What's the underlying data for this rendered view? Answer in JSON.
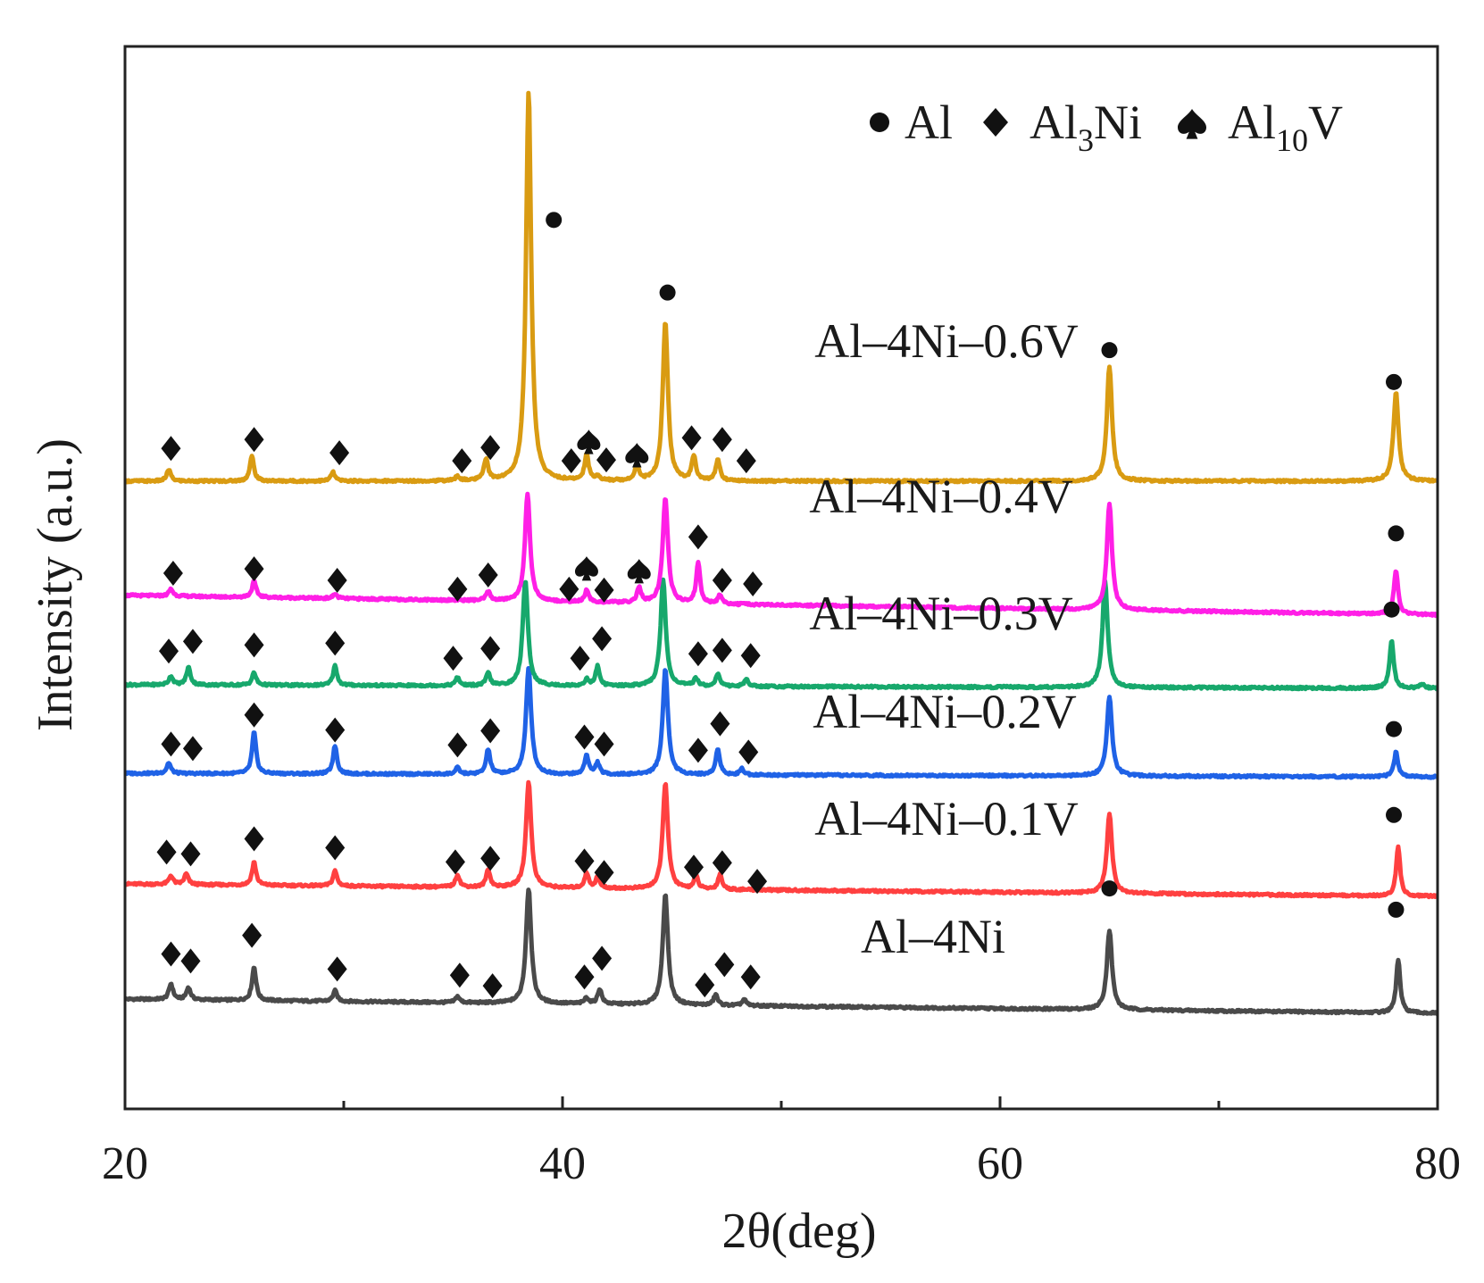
{
  "chart_data": {
    "type": "line",
    "title": "",
    "xlabel": "2θ(deg)",
    "ylabel": "Intensity (a.u.)",
    "xlim": [
      20,
      80
    ],
    "x_ticks": [
      20,
      40,
      60,
      80
    ],
    "x_tick_labels": [
      "20",
      "40",
      "60",
      "80"
    ],
    "y_ticks": [],
    "ylim": [
      -1.2,
      10.8
    ],
    "legend": {
      "placement": "top-right",
      "entries": [
        {
          "symbol": "circle",
          "text": "Al",
          "subscript": "",
          "suffix": ""
        },
        {
          "symbol": "diamond",
          "text": "Al",
          "subscript": "3",
          "suffix": "Ni"
        },
        {
          "symbol": "spade",
          "text": "Al",
          "subscript": "10",
          "suffix": "V"
        }
      ]
    },
    "series": [
      {
        "name": "Al–4Ni",
        "color": "#4a4a4a",
        "offset": 0.0,
        "baseline_start": 0.04,
        "baseline_end": -0.12,
        "peaks": [
          [
            22.1,
            0.18
          ],
          [
            22.9,
            0.14
          ],
          [
            25.9,
            0.38
          ],
          [
            29.6,
            0.12
          ],
          [
            35.2,
            0.07
          ],
          [
            38.45,
            1.3
          ],
          [
            41.1,
            0.07
          ],
          [
            41.7,
            0.17
          ],
          [
            44.7,
            1.25
          ],
          [
            47.0,
            0.12
          ],
          [
            48.3,
            0.07
          ],
          [
            65.0,
            0.9
          ],
          [
            78.2,
            0.6
          ]
        ],
        "markers": [
          {
            "type": "diamond",
            "x": 22.1,
            "y": 0.55
          },
          {
            "type": "diamond",
            "x": 23.0,
            "y": 0.47
          },
          {
            "type": "diamond",
            "x": 25.8,
            "y": 0.76
          },
          {
            "type": "diamond",
            "x": 29.7,
            "y": 0.38
          },
          {
            "type": "diamond",
            "x": 35.3,
            "y": 0.31
          },
          {
            "type": "diamond",
            "x": 36.8,
            "y": 0.19
          },
          {
            "type": "diamond",
            "x": 41.0,
            "y": 0.29
          },
          {
            "type": "diamond",
            "x": 41.8,
            "y": 0.5
          },
          {
            "type": "diamond",
            "x": 46.5,
            "y": 0.2
          },
          {
            "type": "diamond",
            "x": 47.4,
            "y": 0.43
          },
          {
            "type": "diamond",
            "x": 48.6,
            "y": 0.29
          },
          {
            "type": "circle",
            "x": 65.0,
            "y": 1.29
          },
          {
            "type": "circle",
            "x": 78.1,
            "y": 1.05
          }
        ]
      },
      {
        "name": "Al–4Ni–0.1V",
        "color": "#ff4040",
        "offset": 1.3,
        "baseline_start": 0.04,
        "baseline_end": -0.1,
        "peaks": [
          [
            22.1,
            0.1
          ],
          [
            22.8,
            0.12
          ],
          [
            25.9,
            0.26
          ],
          [
            29.6,
            0.17
          ],
          [
            35.2,
            0.14
          ],
          [
            36.6,
            0.2
          ],
          [
            38.45,
            1.2
          ],
          [
            41.1,
            0.17
          ],
          [
            41.6,
            0.12
          ],
          [
            44.7,
            1.2
          ],
          [
            46.1,
            0.15
          ],
          [
            47.2,
            0.17
          ],
          [
            65.0,
            0.9
          ],
          [
            78.2,
            0.55
          ]
        ],
        "markers": [
          {
            "type": "diamond",
            "x": 21.9,
            "y": 0.4
          },
          {
            "type": "diamond",
            "x": 23.0,
            "y": 0.38
          },
          {
            "type": "diamond",
            "x": 25.9,
            "y": 0.55
          },
          {
            "type": "diamond",
            "x": 29.6,
            "y": 0.45
          },
          {
            "type": "diamond",
            "x": 35.1,
            "y": 0.29
          },
          {
            "type": "diamond",
            "x": 36.7,
            "y": 0.33
          },
          {
            "type": "diamond",
            "x": 41.0,
            "y": 0.3
          },
          {
            "type": "diamond",
            "x": 41.9,
            "y": 0.17
          },
          {
            "type": "diamond",
            "x": 46.0,
            "y": 0.23
          },
          {
            "type": "diamond",
            "x": 47.3,
            "y": 0.28
          },
          {
            "type": "diamond",
            "x": 48.9,
            "y": 0.07
          },
          {
            "type": "circle",
            "x": 78.0,
            "y": 0.82
          }
        ]
      },
      {
        "name": "Al–4Ni–0.2V",
        "color": "#1f62e6",
        "offset": 2.55,
        "baseline_start": 0.04,
        "baseline_end": 0.0,
        "peaks": [
          [
            22.0,
            0.12
          ],
          [
            25.9,
            0.47
          ],
          [
            29.6,
            0.32
          ],
          [
            35.2,
            0.07
          ],
          [
            36.6,
            0.28
          ],
          [
            38.45,
            1.2
          ],
          [
            41.1,
            0.22
          ],
          [
            41.6,
            0.13
          ],
          [
            44.7,
            1.2
          ],
          [
            47.1,
            0.3
          ],
          [
            48.2,
            0.07
          ],
          [
            65.0,
            0.9
          ],
          [
            78.1,
            0.28
          ]
        ],
        "markers": [
          {
            "type": "diamond",
            "x": 22.1,
            "y": 0.37
          },
          {
            "type": "diamond",
            "x": 23.1,
            "y": 0.32
          },
          {
            "type": "diamond",
            "x": 25.9,
            "y": 0.7
          },
          {
            "type": "diamond",
            "x": 29.6,
            "y": 0.53
          },
          {
            "type": "diamond",
            "x": 35.2,
            "y": 0.36
          },
          {
            "type": "diamond",
            "x": 36.7,
            "y": 0.52
          },
          {
            "type": "diamond",
            "x": 41.0,
            "y": 0.45
          },
          {
            "type": "diamond",
            "x": 41.9,
            "y": 0.37
          },
          {
            "type": "diamond",
            "x": 46.2,
            "y": 0.3
          },
          {
            "type": "diamond",
            "x": 47.2,
            "y": 0.6
          },
          {
            "type": "diamond",
            "x": 48.5,
            "y": 0.28
          },
          {
            "type": "circle",
            "x": 78.0,
            "y": 0.54
          }
        ]
      },
      {
        "name": "Al–4Ni–0.3V",
        "color": "#17a86c",
        "offset": 3.55,
        "baseline_start": 0.04,
        "baseline_end": 0.0,
        "peaks": [
          [
            22.1,
            0.1
          ],
          [
            22.9,
            0.2
          ],
          [
            25.9,
            0.14
          ],
          [
            29.6,
            0.22
          ],
          [
            35.2,
            0.09
          ],
          [
            36.6,
            0.14
          ],
          [
            38.3,
            1.2
          ],
          [
            41.1,
            0.07
          ],
          [
            41.6,
            0.22
          ],
          [
            44.6,
            1.2
          ],
          [
            46.1,
            0.09
          ],
          [
            47.1,
            0.14
          ],
          [
            48.4,
            0.08
          ],
          [
            64.8,
            1.2
          ],
          [
            77.9,
            0.55
          ],
          [
            79.3,
            0.05
          ]
        ],
        "markers": [
          {
            "type": "diamond",
            "x": 22.0,
            "y": 0.42
          },
          {
            "type": "diamond",
            "x": 23.1,
            "y": 0.53
          },
          {
            "type": "diamond",
            "x": 25.9,
            "y": 0.49
          },
          {
            "type": "diamond",
            "x": 29.6,
            "y": 0.51
          },
          {
            "type": "diamond",
            "x": 35.0,
            "y": 0.34
          },
          {
            "type": "diamond",
            "x": 36.7,
            "y": 0.45
          },
          {
            "type": "diamond",
            "x": 40.8,
            "y": 0.34
          },
          {
            "type": "diamond",
            "x": 41.8,
            "y": 0.56
          },
          {
            "type": "diamond",
            "x": 46.2,
            "y": 0.39
          },
          {
            "type": "diamond",
            "x": 47.3,
            "y": 0.43
          },
          {
            "type": "diamond",
            "x": 48.6,
            "y": 0.37
          },
          {
            "type": "circle",
            "x": 77.9,
            "y": 0.89
          }
        ]
      },
      {
        "name": "Al–4Ni–0.4V",
        "color": "#ff1fe6",
        "offset": 4.5,
        "baseline_start": 0.1,
        "baseline_end": -0.12,
        "peaks": [
          [
            22.1,
            0.08
          ],
          [
            25.9,
            0.18
          ],
          [
            29.6,
            0.05
          ],
          [
            36.6,
            0.1
          ],
          [
            38.4,
            1.2
          ],
          [
            41.1,
            0.13
          ],
          [
            43.5,
            0.17
          ],
          [
            44.7,
            1.2
          ],
          [
            46.2,
            0.45
          ],
          [
            47.2,
            0.1
          ],
          [
            65.0,
            1.2
          ],
          [
            78.1,
            0.5
          ]
        ],
        "markers": [
          {
            "type": "diamond",
            "x": 22.2,
            "y": 0.35
          },
          {
            "type": "diamond",
            "x": 25.9,
            "y": 0.4
          },
          {
            "type": "diamond",
            "x": 29.7,
            "y": 0.27
          },
          {
            "type": "diamond",
            "x": 35.2,
            "y": 0.17
          },
          {
            "type": "diamond",
            "x": 36.6,
            "y": 0.33
          },
          {
            "type": "diamond",
            "x": 40.3,
            "y": 0.17
          },
          {
            "type": "spade",
            "x": 41.1,
            "y": 0.41
          },
          {
            "type": "diamond",
            "x": 41.9,
            "y": 0.16
          },
          {
            "type": "spade",
            "x": 43.5,
            "y": 0.38
          },
          {
            "type": "diamond",
            "x": 46.2,
            "y": 0.76
          },
          {
            "type": "diamond",
            "x": 47.3,
            "y": 0.27
          },
          {
            "type": "diamond",
            "x": 48.7,
            "y": 0.23
          },
          {
            "type": "circle",
            "x": 78.1,
            "y": 0.8
          }
        ]
      },
      {
        "name": "Al–4Ni–0.6V",
        "color": "#d99b12",
        "offset": 5.85,
        "baseline_start": 0.04,
        "baseline_end": 0.04,
        "peaks": [
          [
            22.0,
            0.13
          ],
          [
            25.8,
            0.28
          ],
          [
            29.5,
            0.1
          ],
          [
            35.2,
            0.05
          ],
          [
            36.5,
            0.24
          ],
          [
            38.45,
            4.4
          ],
          [
            41.1,
            0.3
          ],
          [
            41.6,
            0.05
          ],
          [
            43.4,
            0.18
          ],
          [
            44.7,
            1.8
          ],
          [
            46.0,
            0.28
          ],
          [
            47.1,
            0.25
          ],
          [
            65.0,
            1.3
          ],
          [
            78.1,
            1.0
          ]
        ],
        "markers": [
          {
            "type": "diamond",
            "x": 22.1,
            "y": 0.41
          },
          {
            "type": "diamond",
            "x": 25.9,
            "y": 0.51
          },
          {
            "type": "diamond",
            "x": 29.8,
            "y": 0.36
          },
          {
            "type": "diamond",
            "x": 35.4,
            "y": 0.27
          },
          {
            "type": "diamond",
            "x": 36.7,
            "y": 0.42
          },
          {
            "type": "diamond",
            "x": 40.4,
            "y": 0.27
          },
          {
            "type": "spade",
            "x": 41.2,
            "y": 0.49
          },
          {
            "type": "diamond",
            "x": 42.0,
            "y": 0.28
          },
          {
            "type": "spade",
            "x": 43.4,
            "y": 0.34
          },
          {
            "type": "diamond",
            "x": 45.9,
            "y": 0.53
          },
          {
            "type": "diamond",
            "x": 47.3,
            "y": 0.51
          },
          {
            "type": "diamond",
            "x": 48.4,
            "y": 0.27
          },
          {
            "type": "circle",
            "x": 39.6,
            "y": 2.99
          },
          {
            "type": "circle",
            "x": 44.8,
            "y": 2.17
          },
          {
            "type": "circle",
            "x": 65.0,
            "y": 1.52
          },
          {
            "type": "circle",
            "x": 78.0,
            "y": 1.16
          }
        ]
      }
    ]
  }
}
